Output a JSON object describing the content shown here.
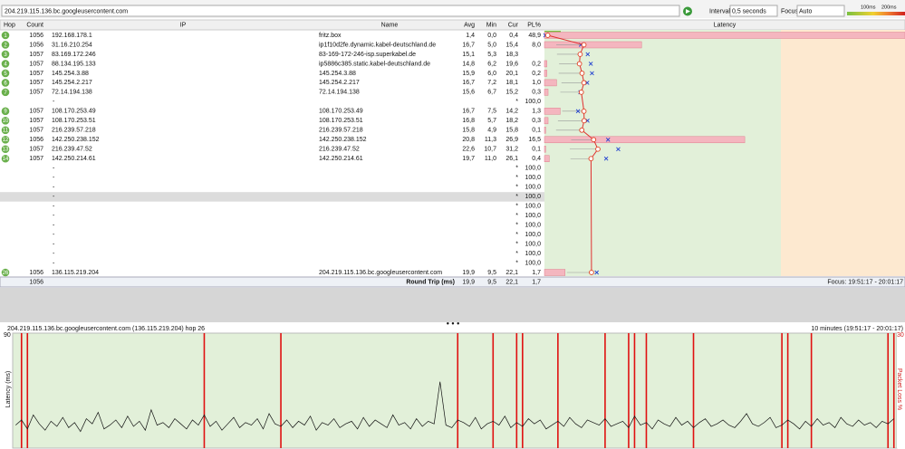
{
  "toolbar": {
    "address": "204.219.115.136.bc.googleusercontent.com",
    "interval_label": "Interval",
    "interval": "0,5 seconds",
    "focus_label": "Focus",
    "focus": "Auto",
    "scale_labels": [
      "100ms",
      "200ms"
    ]
  },
  "table": {
    "headers": [
      "Hop",
      "Count",
      "IP",
      "Name",
      "Avg",
      "Min",
      "Cur",
      "PL%"
    ],
    "latency_header": "Latency",
    "scale_start": "0 ms",
    "scale_end": "154 ms",
    "rows": [
      {
        "hop": "1",
        "count": "1056",
        "ip": "192.168.178.1",
        "name": "fritz.box",
        "avg": "1,4",
        "min": "0,0",
        "cur": "0,4",
        "pl": "48,9"
      },
      {
        "hop": "2",
        "count": "1056",
        "ip": "31.16.210.254",
        "name": "ip1f10d2fe.dynamic.kabel-deutschland.de",
        "avg": "16,7",
        "min": "5,0",
        "cur": "15,4",
        "pl": "8,0"
      },
      {
        "hop": "3",
        "count": "1057",
        "ip": "83.169.172.246",
        "name": "83-169-172-246-isp.superkabel.de",
        "avg": "15,1",
        "min": "5,3",
        "cur": "18,3"
      },
      {
        "hop": "4",
        "count": "1057",
        "ip": "88.134.195.133",
        "name": "ip5886c385.static.kabel-deutschland.de",
        "avg": "14,8",
        "min": "6,2",
        "cur": "19,6",
        "pl": "0,2"
      },
      {
        "hop": "5",
        "count": "1057",
        "ip": "145.254.3.88",
        "name": "145.254.3.88",
        "avg": "15,9",
        "min": "6,0",
        "cur": "20,1",
        "pl": "0,2"
      },
      {
        "hop": "6",
        "count": "1057",
        "ip": "145.254.2.217",
        "name": "145.254.2.217",
        "avg": "16,7",
        "min": "7,2",
        "cur": "18,1",
        "pl": "1,0"
      },
      {
        "hop": "7",
        "count": "1057",
        "ip": "72.14.194.138",
        "name": "72.14.194.138",
        "avg": "15,6",
        "min": "6,7",
        "cur": "15,2",
        "pl": "0,3"
      },
      {
        "ip": "-",
        "cur": "*",
        "pl": "100,0"
      },
      {
        "hop": "9",
        "count": "1057",
        "ip": "108.170.253.49",
        "name": "108.170.253.49",
        "avg": "16,7",
        "min": "7,5",
        "cur": "14,2",
        "pl": "1,3"
      },
      {
        "hop": "10",
        "count": "1057",
        "ip": "108.170.253.51",
        "name": "108.170.253.51",
        "avg": "16,8",
        "min": "5,7",
        "cur": "18,2",
        "pl": "0,3"
      },
      {
        "hop": "11",
        "count": "1057",
        "ip": "216.239.57.218",
        "name": "216.239.57.218",
        "avg": "15,8",
        "min": "4,9",
        "cur": "15,8",
        "pl": "0,1"
      },
      {
        "hop": "12",
        "count": "1056",
        "ip": "142.250.238.152",
        "name": "142.250.238.152",
        "avg": "20,8",
        "min": "11,3",
        "cur": "26,9",
        "pl": "16,5"
      },
      {
        "hop": "13",
        "count": "1057",
        "ip": "216.239.47.52",
        "name": "216.239.47.52",
        "avg": "22,6",
        "min": "10,7",
        "cur": "31,2",
        "pl": "0,1"
      },
      {
        "hop": "14",
        "count": "1057",
        "ip": "142.250.214.61",
        "name": "142.250.214.61",
        "avg": "19,7",
        "min": "11,0",
        "cur": "26,1",
        "pl": "0,4"
      },
      {
        "ip": "-",
        "cur": "*",
        "pl": "100,0"
      },
      {
        "ip": "-",
        "cur": "*",
        "pl": "100,0"
      },
      {
        "ip": "-",
        "cur": "*",
        "pl": "100,0"
      },
      {
        "ip": "-",
        "cur": "*",
        "pl": "100,0"
      },
      {
        "ip": "-",
        "cur": "*",
        "pl": "100,0"
      },
      {
        "ip": "-",
        "cur": "*",
        "pl": "100,0"
      },
      {
        "ip": "-",
        "cur": "*",
        "pl": "100,0"
      },
      {
        "ip": "-",
        "cur": "*",
        "pl": "100,0"
      },
      {
        "ip": "-",
        "cur": "*",
        "pl": "100,0"
      },
      {
        "ip": "-",
        "cur": "*",
        "pl": "100,0"
      },
      {
        "ip": "-",
        "cur": "*",
        "pl": "100,0"
      },
      {
        "hop": "26",
        "count": "1056",
        "ip": "136.115.219.204",
        "name": "204.219.115.136.bc.googleusercontent.com",
        "avg": "19,9",
        "min": "9,5",
        "cur": "22,1",
        "pl": "1,7"
      }
    ],
    "summary": {
      "count": "1056",
      "label": "Round Trip (ms)",
      "avg": "19,9",
      "min": "9,5",
      "cur": "22,1",
      "pl": "1,7",
      "focus": "Focus: 19:51:17 - 20:01:17"
    }
  },
  "graph": {
    "title": "204.219.115.136.bc.googleusercontent.com (136.115.219.204) hop 26",
    "range": "10 minutes (19:51:17 - 20:01:17)",
    "y_label": "Latency (ms)",
    "y_max": 90,
    "y2_label": "Packet Loss %",
    "y2_max": 30,
    "samples": [
      18,
      22,
      15,
      26,
      19,
      14,
      21,
      17,
      24,
      16,
      20,
      13,
      23,
      19,
      28,
      15,
      18,
      22,
      16,
      25,
      17,
      21,
      14,
      30,
      18,
      20,
      16,
      23,
      19,
      15,
      22,
      18,
      26,
      17,
      21,
      14,
      19,
      24,
      16,
      20,
      18,
      23,
      15,
      27,
      19,
      17,
      22,
      16,
      21,
      18,
      25,
      14,
      20,
      18,
      23,
      16,
      19,
      21,
      15,
      24,
      17,
      22,
      19,
      16,
      26,
      18,
      20,
      15,
      23,
      17,
      21,
      19,
      52,
      18,
      16,
      22,
      20,
      17,
      24,
      15,
      19,
      21,
      18,
      25,
      16,
      20,
      17,
      23,
      19,
      22,
      15,
      18,
      21,
      17,
      24,
      19,
      16,
      22,
      20,
      18,
      23,
      17,
      19,
      21,
      16,
      25,
      18,
      20,
      15,
      22,
      19,
      17,
      24,
      18,
      21,
      16,
      20,
      23,
      17,
      19,
      22,
      18,
      16,
      21,
      27,
      19,
      17,
      20,
      24,
      16,
      18,
      22,
      19,
      15,
      21,
      17,
      23,
      18,
      20,
      16,
      24,
      19,
      17,
      22,
      18,
      20,
      16,
      21,
      19,
      23
    ],
    "loss_at": [
      1,
      2,
      32,
      45,
      75,
      81,
      85,
      86,
      92,
      100,
      104,
      105,
      107,
      115,
      130,
      131,
      135,
      148,
      149
    ]
  }
}
